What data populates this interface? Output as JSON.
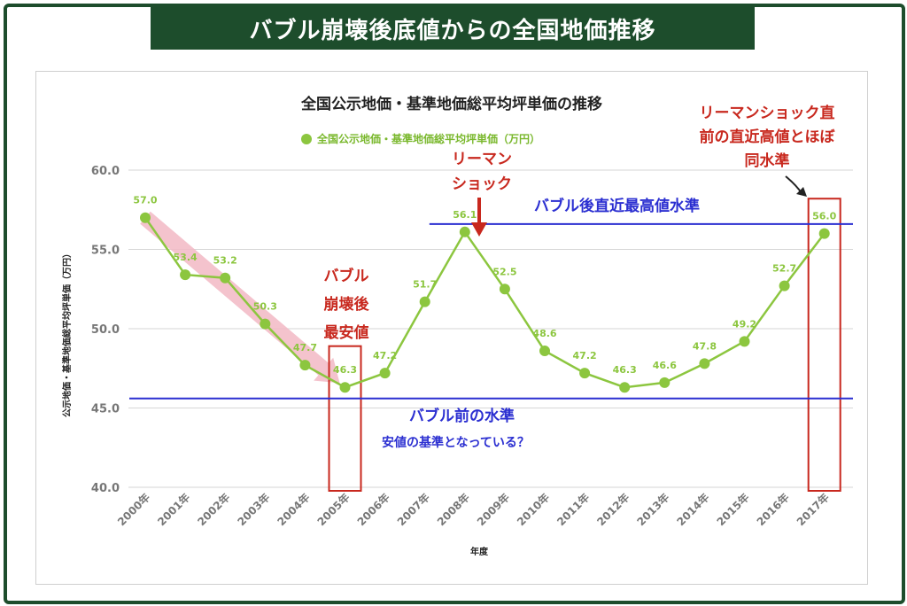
{
  "banner": {
    "title": "バブル崩壊後底値からの全国地価推移"
  },
  "colors": {
    "frame": "#1d4d2c",
    "series": "#8cc63f",
    "reference_line": "#2b2fd1",
    "highlight": "#c8281e",
    "trend_arrow": "#f2b8c4"
  },
  "chart_data": {
    "type": "line",
    "title": "全国公示地価・基準地価総平均坪単価の推移",
    "xlabel": "年度",
    "ylabel": "公示地価・基準地価総平均坪単価（万円）",
    "ylim": [
      40,
      60
    ],
    "yticks": [
      "40.0",
      "45.0",
      "50.0",
      "55.0",
      "60.0"
    ],
    "grid": true,
    "legend_position": "top-center",
    "x": [
      "2000年",
      "2001年",
      "2002年",
      "2003年",
      "2004年",
      "2005年",
      "2006年",
      "2007年",
      "2008年",
      "2009年",
      "2010年",
      "2011年",
      "2012年",
      "2013年",
      "2014年",
      "2015年",
      "2016年",
      "2017年"
    ],
    "series": [
      {
        "name": "全国公示地価・基準地価総平均坪単価（万円）",
        "values": [
          57.0,
          53.4,
          53.2,
          50.3,
          47.7,
          46.3,
          47.2,
          51.7,
          56.1,
          52.5,
          48.6,
          47.2,
          46.3,
          46.6,
          47.8,
          49.2,
          52.7,
          56.0
        ],
        "labels": [
          "57.0",
          "53.4",
          "53.2",
          "50.3",
          "47.7",
          "46.3",
          "47.2",
          "51.7",
          "56.1",
          "52.5",
          "48.6",
          "47.2",
          "46.3",
          "46.6",
          "47.8",
          "49.2",
          "52.7",
          "56.0"
        ]
      }
    ],
    "reference_lines": [
      {
        "value": 56.6,
        "label": "バブル後直近最高値水準",
        "x_from": "2008年"
      },
      {
        "value": 45.6,
        "label": "バブル前の水準",
        "sublabel": "安値の基準となっている？",
        "x_from": "2000年"
      }
    ],
    "annotations": {
      "bubble_low": [
        "バブル",
        "崩壊後",
        "最安値"
      ],
      "lehman": [
        "リーマン",
        "ショック"
      ],
      "pre_lehman": [
        "リーマンショック直",
        "前の直近高値とほぼ",
        "同水準"
      ]
    },
    "highlight_boxes": [
      {
        "x": "2005年",
        "y_range": [
          40,
          48.9
        ]
      },
      {
        "x": "2017年",
        "y_range": [
          40,
          58.2
        ]
      }
    ]
  }
}
